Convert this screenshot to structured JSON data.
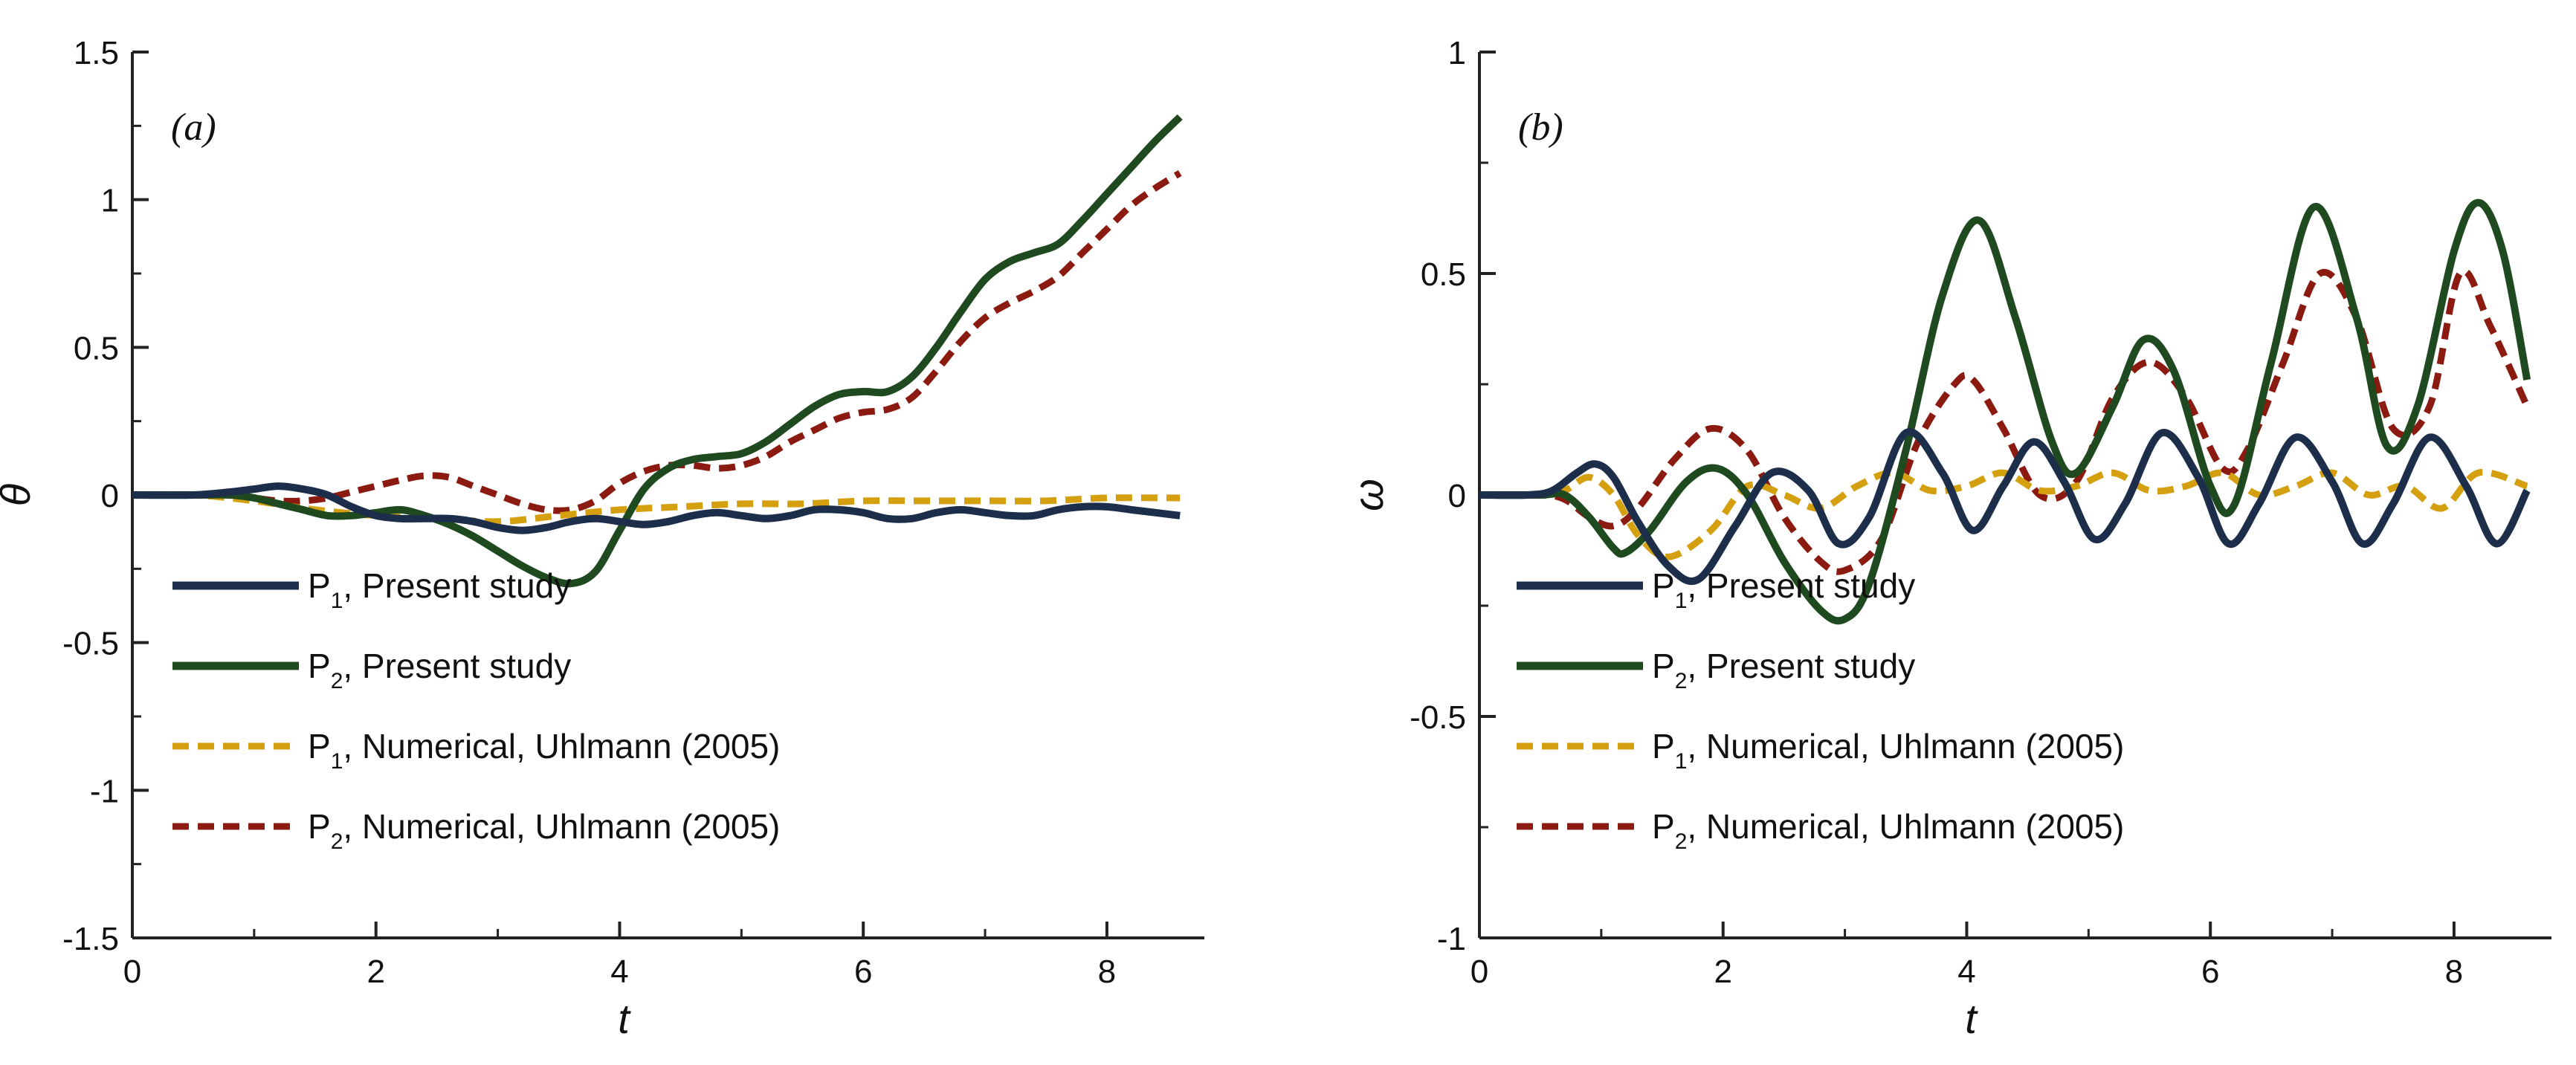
{
  "chart_data": [
    {
      "type": "line",
      "panel_label": "(a)",
      "xlabel": "t",
      "ylabel": "θ",
      "xlim": [
        0,
        8.8
      ],
      "ylim": [
        -1.5,
        1.5
      ],
      "xticks": [
        0,
        2,
        4,
        6,
        8
      ],
      "xtick_labels": [
        "0",
        "2",
        "4",
        "6",
        "8"
      ],
      "yticks": [
        -1.5,
        -1,
        -0.5,
        0,
        0.5,
        1,
        1.5
      ],
      "ytick_labels": [
        "-1.5",
        "-1",
        "-0.5",
        "0",
        "0.5",
        "1",
        "1.5"
      ],
      "grid": false,
      "legend_position": "bottom-left",
      "series": [
        {
          "name": "P1, Present study",
          "legend_main": "P",
          "legend_sub": "1",
          "legend_rest": ", Present study",
          "color": "#1c2e4a",
          "dash": "solid",
          "x": [
            0,
            0.5,
            0.8,
            1.0,
            1.2,
            1.4,
            1.6,
            1.8,
            2.0,
            2.2,
            2.4,
            2.6,
            2.8,
            3.0,
            3.2,
            3.4,
            3.6,
            3.8,
            4.0,
            4.2,
            4.4,
            4.6,
            4.8,
            5.0,
            5.2,
            5.4,
            5.6,
            5.8,
            6.0,
            6.2,
            6.4,
            6.6,
            6.8,
            7.0,
            7.2,
            7.4,
            7.6,
            7.8,
            8.0,
            8.2,
            8.4,
            8.6
          ],
          "y": [
            0,
            0,
            0.01,
            0.02,
            0.03,
            0.02,
            0.0,
            -0.04,
            -0.07,
            -0.08,
            -0.08,
            -0.08,
            -0.09,
            -0.11,
            -0.12,
            -0.11,
            -0.09,
            -0.08,
            -0.09,
            -0.1,
            -0.09,
            -0.07,
            -0.06,
            -0.07,
            -0.08,
            -0.07,
            -0.05,
            -0.05,
            -0.06,
            -0.08,
            -0.08,
            -0.06,
            -0.05,
            -0.06,
            -0.07,
            -0.07,
            -0.05,
            -0.04,
            -0.04,
            -0.05,
            -0.06,
            -0.07
          ]
        },
        {
          "name": "P2, Present study",
          "legend_main": "P",
          "legend_sub": "2",
          "legend_rest": ", Present study",
          "color": "#1f4a1f",
          "dash": "solid",
          "x": [
            0,
            0.5,
            0.8,
            1.0,
            1.2,
            1.4,
            1.6,
            1.8,
            2.0,
            2.2,
            2.4,
            2.6,
            2.8,
            3.0,
            3.2,
            3.4,
            3.6,
            3.8,
            4.0,
            4.2,
            4.4,
            4.6,
            4.8,
            5.0,
            5.2,
            5.4,
            5.6,
            5.8,
            6.0,
            6.2,
            6.4,
            6.6,
            6.8,
            7.0,
            7.2,
            7.4,
            7.6,
            7.8,
            8.0,
            8.2,
            8.4,
            8.6
          ],
          "y": [
            0,
            0,
            0.0,
            -0.01,
            -0.03,
            -0.05,
            -0.07,
            -0.07,
            -0.06,
            -0.05,
            -0.07,
            -0.1,
            -0.14,
            -0.19,
            -0.24,
            -0.28,
            -0.3,
            -0.26,
            -0.12,
            0.02,
            0.09,
            0.12,
            0.13,
            0.14,
            0.18,
            0.24,
            0.3,
            0.34,
            0.35,
            0.35,
            0.4,
            0.5,
            0.62,
            0.73,
            0.79,
            0.82,
            0.85,
            0.93,
            1.02,
            1.11,
            1.2,
            1.28
          ]
        },
        {
          "name": "P1, Numerical, Uhlmann (2005)",
          "legend_main": "P",
          "legend_sub": "1",
          "legend_rest": ", Numerical, Uhlmann (2005)",
          "color": "#d4a010",
          "dash": "dashed",
          "x": [
            0,
            0.5,
            1.0,
            1.5,
            2.0,
            2.5,
            3.0,
            3.5,
            4.0,
            4.5,
            5.0,
            5.5,
            6.0,
            6.5,
            7.0,
            7.5,
            8.0,
            8.6
          ],
          "y": [
            0,
            0,
            -0.02,
            -0.05,
            -0.07,
            -0.08,
            -0.09,
            -0.07,
            -0.05,
            -0.04,
            -0.03,
            -0.03,
            -0.02,
            -0.02,
            -0.02,
            -0.02,
            -0.01,
            -0.01
          ]
        },
        {
          "name": "P2, Numerical, Uhlmann (2005)",
          "legend_main": "P",
          "legend_sub": "2",
          "legend_rest": ", Numerical, Uhlmann (2005)",
          "color": "#8b1a10",
          "dash": "dashed",
          "x": [
            0,
            0.5,
            0.8,
            1.0,
            1.2,
            1.4,
            1.6,
            1.8,
            2.0,
            2.2,
            2.4,
            2.6,
            2.8,
            3.0,
            3.2,
            3.4,
            3.6,
            3.8,
            4.0,
            4.2,
            4.4,
            4.6,
            4.8,
            5.0,
            5.2,
            5.4,
            5.6,
            5.8,
            6.0,
            6.2,
            6.4,
            6.6,
            6.8,
            7.0,
            7.2,
            7.4,
            7.6,
            7.8,
            8.0,
            8.2,
            8.4,
            8.6
          ],
          "y": [
            0,
            0,
            0.0,
            -0.01,
            -0.02,
            -0.02,
            -0.01,
            0.01,
            0.03,
            0.05,
            0.065,
            0.06,
            0.03,
            0.0,
            -0.03,
            -0.05,
            -0.05,
            -0.02,
            0.04,
            0.08,
            0.1,
            0.1,
            0.09,
            0.1,
            0.13,
            0.18,
            0.22,
            0.26,
            0.28,
            0.29,
            0.33,
            0.42,
            0.52,
            0.6,
            0.65,
            0.69,
            0.74,
            0.82,
            0.9,
            0.98,
            1.04,
            1.09
          ]
        }
      ]
    },
    {
      "type": "line",
      "panel_label": "(b)",
      "xlabel": "t",
      "ylabel": "ω",
      "xlim": [
        0,
        8.8
      ],
      "ylim": [
        -1,
        1
      ],
      "xticks": [
        0,
        2,
        4,
        6,
        8
      ],
      "xtick_labels": [
        "0",
        "2",
        "4",
        "6",
        "8"
      ],
      "yticks": [
        -1,
        -0.5,
        0,
        0.5,
        1
      ],
      "ytick_labels": [
        "-1",
        "-0.5",
        "0",
        "0.5",
        "1"
      ],
      "grid": false,
      "legend_position": "bottom-left",
      "series": [
        {
          "name": "P1, Present study",
          "legend_main": "P",
          "legend_sub": "1",
          "legend_rest": ", Present study",
          "color": "#1c2e4a",
          "dash": "solid",
          "x": [
            0,
            0.4,
            0.6,
            0.8,
            0.95,
            1.1,
            1.3,
            1.55,
            1.8,
            2.1,
            2.4,
            2.7,
            2.95,
            3.2,
            3.5,
            3.8,
            4.05,
            4.3,
            4.55,
            4.8,
            5.05,
            5.3,
            5.6,
            5.9,
            6.15,
            6.4,
            6.7,
            7.0,
            7.25,
            7.5,
            7.8,
            8.1,
            8.35,
            8.6
          ],
          "y": [
            0,
            0,
            0.01,
            0.05,
            0.07,
            0.04,
            -0.06,
            -0.16,
            -0.19,
            -0.07,
            0.05,
            0.01,
            -0.11,
            -0.05,
            0.14,
            0.05,
            -0.08,
            0.02,
            0.12,
            0.03,
            -0.1,
            -0.02,
            0.14,
            0.04,
            -0.11,
            -0.02,
            0.13,
            0.03,
            -0.11,
            -0.02,
            0.13,
            0.02,
            -0.11,
            0.01
          ]
        },
        {
          "name": "P2, Present study",
          "legend_main": "P",
          "legend_sub": "2",
          "legend_rest": ", Present study",
          "color": "#1f4a1f",
          "dash": "solid",
          "x": [
            0,
            0.5,
            0.7,
            0.9,
            1.1,
            1.2,
            1.4,
            1.7,
            1.95,
            2.2,
            2.5,
            2.8,
            3.0,
            3.2,
            3.5,
            3.8,
            4.1,
            4.4,
            4.7,
            4.9,
            5.2,
            5.45,
            5.7,
            6.0,
            6.2,
            6.5,
            6.85,
            7.2,
            7.45,
            7.7,
            8.0,
            8.2,
            8.4,
            8.6
          ],
          "y": [
            0,
            0,
            0.0,
            -0.05,
            -0.12,
            -0.13,
            -0.08,
            0.03,
            0.06,
            0.0,
            -0.15,
            -0.26,
            -0.28,
            -0.2,
            0.1,
            0.45,
            0.62,
            0.4,
            0.12,
            0.05,
            0.2,
            0.35,
            0.28,
            0.02,
            -0.02,
            0.3,
            0.65,
            0.4,
            0.11,
            0.2,
            0.55,
            0.66,
            0.55,
            0.26
          ]
        },
        {
          "name": "P1, Numerical, Uhlmann (2005)",
          "legend_main": "P",
          "legend_sub": "1",
          "legend_rest": ", Numerical, Uhlmann (2005)",
          "color": "#d4a010",
          "dash": "dashed",
          "x": [
            0,
            0.5,
            0.7,
            0.9,
            1.1,
            1.3,
            1.55,
            1.9,
            2.2,
            2.5,
            2.8,
            3.1,
            3.4,
            3.7,
            4.0,
            4.3,
            4.6,
            4.9,
            5.2,
            5.5,
            5.8,
            6.1,
            6.4,
            6.7,
            7.0,
            7.3,
            7.6,
            7.9,
            8.2,
            8.6
          ],
          "y": [
            0,
            0,
            0.01,
            0.04,
            0.0,
            -0.09,
            -0.14,
            -0.08,
            0.02,
            0.0,
            -0.03,
            0.02,
            0.05,
            0.01,
            0.02,
            0.05,
            0.01,
            0.02,
            0.05,
            0.01,
            0.02,
            0.05,
            0.0,
            0.02,
            0.05,
            0.0,
            0.02,
            -0.03,
            0.05,
            0.02
          ]
        },
        {
          "name": "P2, Numerical, Uhlmann (2005)",
          "legend_main": "P",
          "legend_sub": "2",
          "legend_rest": ", Numerical, Uhlmann (2005)",
          "color": "#8b1a10",
          "dash": "dashed",
          "x": [
            0,
            0.5,
            0.7,
            0.9,
            1.1,
            1.3,
            1.6,
            1.9,
            2.2,
            2.5,
            2.8,
            3.0,
            3.3,
            3.6,
            3.9,
            4.05,
            4.3,
            4.6,
            4.9,
            5.2,
            5.5,
            5.8,
            6.1,
            6.3,
            6.6,
            6.9,
            7.2,
            7.5,
            7.8,
            8.05,
            8.3,
            8.6
          ],
          "y": [
            0,
            0,
            -0.01,
            -0.05,
            -0.07,
            -0.03,
            0.08,
            0.15,
            0.1,
            -0.05,
            -0.15,
            -0.17,
            -0.1,
            0.12,
            0.25,
            0.26,
            0.15,
            0.0,
            0.03,
            0.22,
            0.3,
            0.22,
            0.06,
            0.1,
            0.3,
            0.5,
            0.4,
            0.15,
            0.2,
            0.5,
            0.38,
            0.2
          ]
        }
      ]
    }
  ]
}
